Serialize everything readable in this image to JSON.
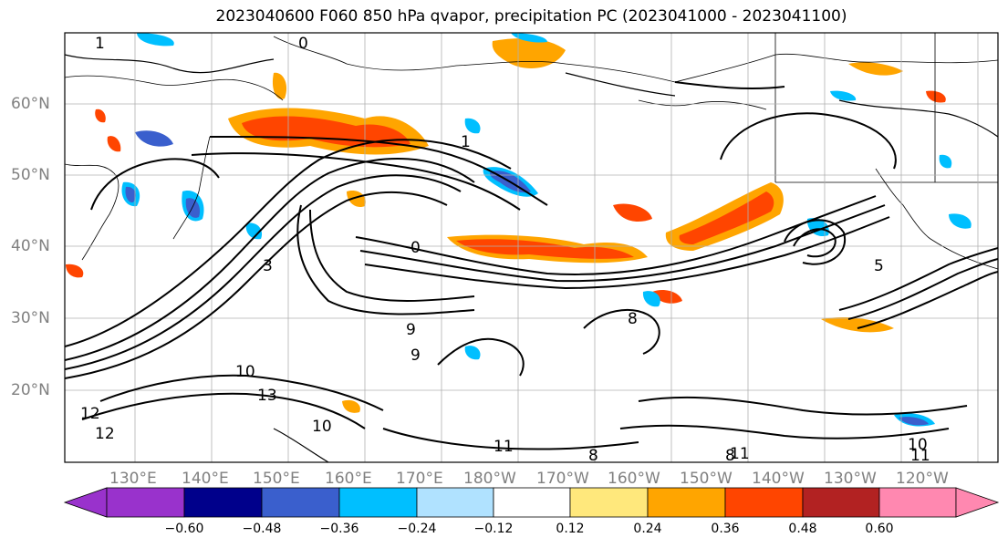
{
  "title": "2023040600 F060 850 hPa qvapor, precipitation PC (2023041000 - 2023041100)",
  "lat_labels": [
    "60°N",
    "50°N",
    "40°N",
    "30°N",
    "20°N"
  ],
  "lon_labels": [
    "130°E",
    "140°E",
    "150°E",
    "160°E",
    "170°E",
    "180°W",
    "170°W",
    "160°W",
    "150°W",
    "140°W",
    "130°W",
    "120°W"
  ],
  "contour_labels": [
    "1",
    "0",
    "1",
    "0",
    "3",
    "9",
    "9",
    "10",
    "13",
    "12",
    "12",
    "10",
    "11",
    "8",
    "8",
    "11",
    "10",
    "11",
    "8",
    "5"
  ],
  "colorbar": {
    "ticks": [
      "−0.60",
      "−0.48",
      "−0.36",
      "−0.24",
      "−0.12",
      "0.12",
      "0.24",
      "0.36",
      "0.48",
      "0.60"
    ],
    "colors": [
      "#9932cc",
      "#00008b",
      "#3a5fcd",
      "#00bfff",
      "#b0e2ff",
      "#ffffff",
      "#ffe87c",
      "#ffa500",
      "#ff4500",
      "#b22222",
      "#ff88b0"
    ]
  }
}
